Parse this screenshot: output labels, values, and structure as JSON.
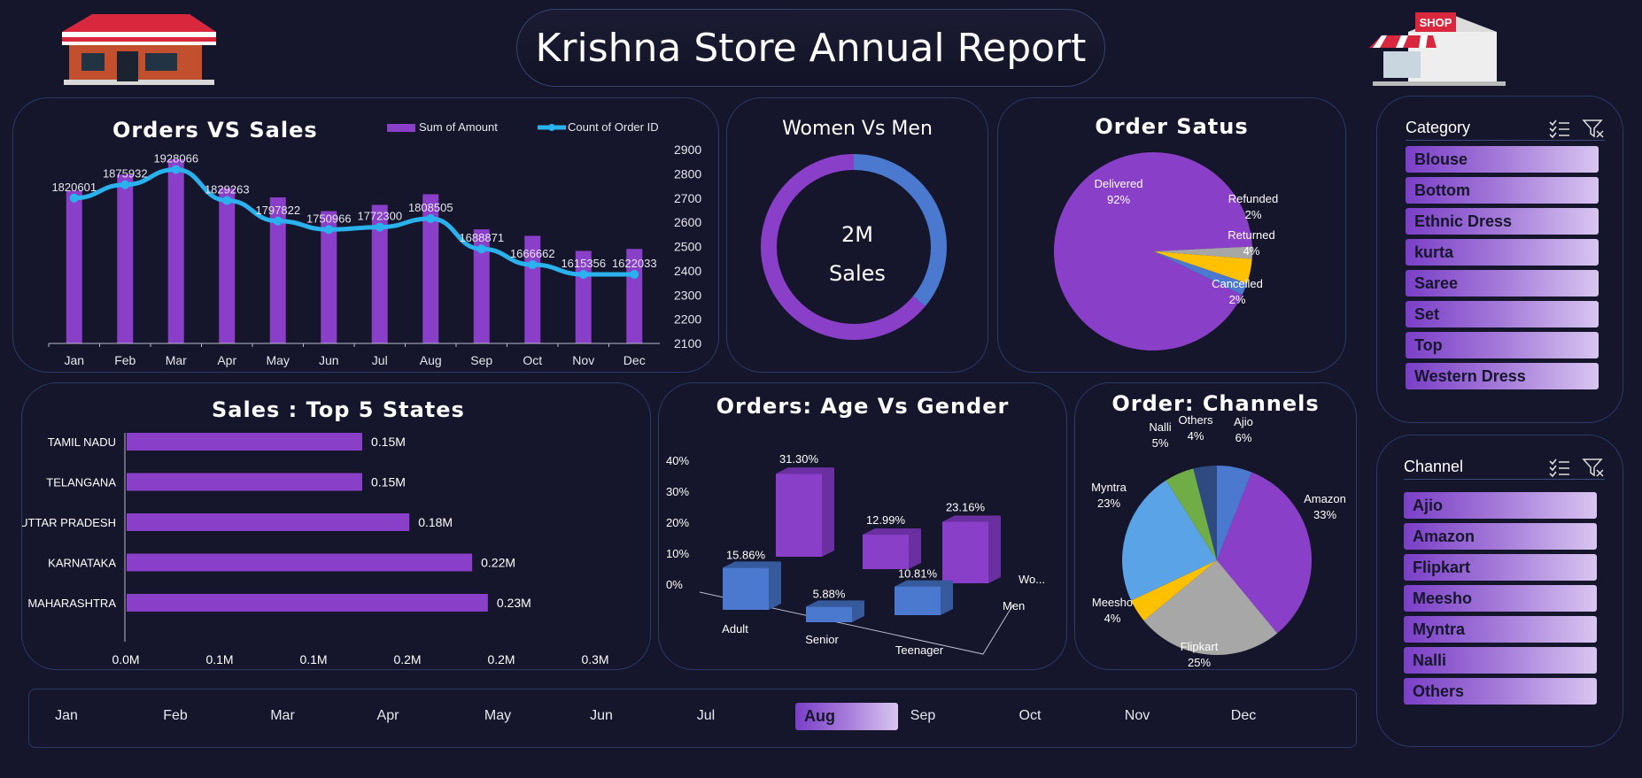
{
  "header": {
    "title": "Krishna Store Annual Report"
  },
  "icons": {
    "left": "store-icon",
    "right": "shop-icon"
  },
  "colors": {
    "background": "#15152b",
    "purple": "#8a3fc8",
    "blue": "#2ab2ef",
    "accent_blue": "#4a79cf"
  },
  "orders_vs_sales": {
    "title": "Orders VS Sales"
  },
  "women_vs_men": {
    "title": "Women Vs Men",
    "center_value": "2M",
    "center_label": "Sales"
  },
  "order_status": {
    "title": "Order Satus"
  },
  "top_states": {
    "title": "Sales : Top 5 States"
  },
  "age_gender": {
    "title": "Orders: Age Vs Gender"
  },
  "channels_chart": {
    "title": "Order: Channels"
  },
  "category_slicer": {
    "label": "Category",
    "items": [
      "Blouse",
      "Bottom",
      "Ethnic Dress",
      "kurta",
      "Saree",
      "Set",
      "Top",
      "Western Dress"
    ]
  },
  "channel_slicer": {
    "label": "Channel",
    "items": [
      "Ajio",
      "Amazon",
      "Flipkart",
      "Meesho",
      "Myntra",
      "Nalli",
      "Others"
    ]
  },
  "month_slicer": {
    "months": [
      "Jan",
      "Feb",
      "Mar",
      "Apr",
      "May",
      "Jun",
      "Jul",
      "Aug",
      "Sep",
      "Oct",
      "Nov",
      "Dec"
    ],
    "selected": "Aug"
  },
  "chart_data": [
    {
      "id": "orders_vs_sales",
      "type": "bar",
      "title": "Orders VS Sales",
      "categories": [
        "Jan",
        "Feb",
        "Mar",
        "Apr",
        "May",
        "Jun",
        "Jul",
        "Aug",
        "Sep",
        "Oct",
        "Nov",
        "Dec"
      ],
      "series": [
        {
          "name": "Sum of Amount",
          "type": "bar",
          "color": "#8a3fc8",
          "values": [
            1820601,
            1875932,
            1928066,
            1829263,
            1797822,
            1750966,
            1772300,
            1808505,
            1688871,
            1666662,
            1615356,
            1622033
          ]
        },
        {
          "name": "Count of Order ID",
          "type": "line",
          "axis": "secondary",
          "color": "#2ab2ef",
          "values": [
            2700,
            2755,
            2818,
            2690,
            2605,
            2570,
            2580,
            2615,
            2490,
            2425,
            2385,
            2385
          ]
        }
      ],
      "data_labels": [
        "1820601",
        "1875932",
        "1928066",
        "1829263",
        "1797822",
        "1750966",
        "1772300",
        "1808505",
        "1688871",
        "1666662",
        "1615356",
        "1622033"
      ],
      "primary_ylim": [
        1300000,
        2000000
      ],
      "y2_ticks": [
        "2100",
        "2200",
        "2300",
        "2400",
        "2500",
        "2600",
        "2700",
        "2800",
        "2900"
      ],
      "ylim_secondary": [
        2100,
        2900
      ],
      "legend": "top-right"
    },
    {
      "id": "women_vs_men",
      "type": "pie",
      "style": "donut",
      "title": "Women Vs Men",
      "slices": [
        {
          "value": 64,
          "color": "#8a3fc8"
        },
        {
          "value": 36,
          "color": "#4a79cf"
        }
      ]
    },
    {
      "id": "order_status",
      "type": "pie",
      "title": "Order Satus",
      "slices": [
        {
          "label": "Delivered",
          "pct_label": "92%",
          "value": 92,
          "color": "#8a3fc8"
        },
        {
          "label": "Refunded",
          "pct_label": "2%",
          "value": 2,
          "color": "#a7a7a7"
        },
        {
          "label": "Returned",
          "pct_label": "4%",
          "value": 4,
          "color": "#ffc000"
        },
        {
          "label": "Cancelled",
          "pct_label": "2%",
          "value": 2,
          "color": "#4a79cf"
        }
      ]
    },
    {
      "id": "top_states",
      "type": "bar",
      "orientation": "horizontal",
      "title": "Sales : Top 5 States",
      "categories": [
        "TAMIL NADU",
        "TELANGANA",
        "UTTAR PRADESH",
        "KARNATAKA",
        "MAHARASHTRA"
      ],
      "values": [
        0.15,
        0.15,
        0.18,
        0.22,
        0.23
      ],
      "value_labels": [
        "0.15M",
        "0.15M",
        "0.18M",
        "0.22M",
        "0.23M"
      ],
      "x_ticks": [
        "0.0M",
        "0.1M",
        "0.1M",
        "0.2M",
        "0.2M",
        "0.3M"
      ],
      "xlim": [
        0,
        0.3
      ]
    },
    {
      "id": "age_gender",
      "type": "bar",
      "style": "3d-clustered",
      "title": "Orders: Age Vs Gender",
      "categories": [
        "Adult",
        "Senior",
        "Teenager"
      ],
      "series": [
        {
          "name": "Men",
          "color": "#4a79cf",
          "values": [
            15.86,
            5.88,
            10.81
          ],
          "labels": [
            "15.86%",
            "5.88%",
            "10.81%"
          ]
        },
        {
          "name": "Wo...",
          "color": "#8a3fc8",
          "values": [
            31.3,
            12.99,
            23.16
          ],
          "labels": [
            "31.30%",
            "12.99%",
            "23.16%"
          ]
        }
      ],
      "y_ticks": [
        "0%",
        "10%",
        "20%",
        "30%",
        "40%"
      ],
      "ylim": [
        0,
        40
      ]
    },
    {
      "id": "channels",
      "type": "pie",
      "title": "Order: Channels",
      "slices": [
        {
          "label": "Ajio",
          "pct_label": "6%",
          "value": 6,
          "color": "#4a79cf"
        },
        {
          "label": "Amazon",
          "pct_label": "33%",
          "value": 33,
          "color": "#8a3fc8"
        },
        {
          "label": "Flipkart",
          "pct_label": "25%",
          "value": 25,
          "color": "#a7a7a7"
        },
        {
          "label": "Meesho",
          "pct_label": "4%",
          "value": 4,
          "color": "#ffc000"
        },
        {
          "label": "Myntra",
          "pct_label": "23%",
          "value": 23,
          "color": "#5aa3e6"
        },
        {
          "label": "Nalli",
          "pct_label": "5%",
          "value": 5,
          "color": "#70ad47"
        },
        {
          "label": "Others",
          "pct_label": "4%",
          "value": 4,
          "color": "#2e4a80"
        }
      ]
    }
  ]
}
